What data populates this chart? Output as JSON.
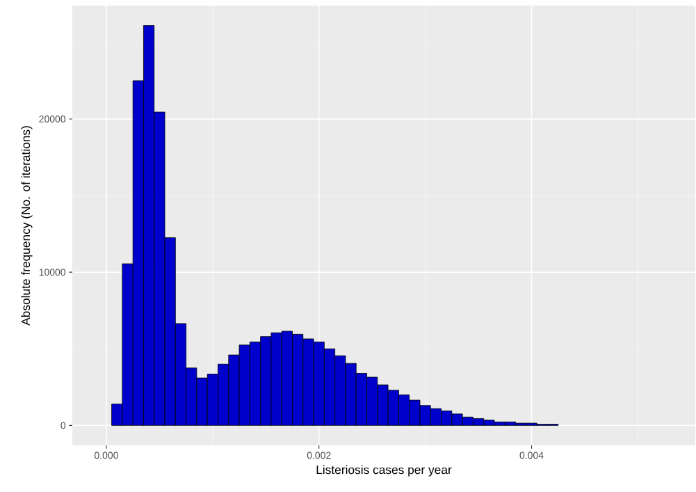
{
  "chart_data": {
    "type": "histogram",
    "xlabel": "Listeriosis cases per year",
    "ylabel": "Absolute frequency (No. of iterations)",
    "bins": [
      -5e-05,
      5e-05,
      0.00015,
      0.00025,
      0.00035,
      0.00045,
      0.00055,
      0.00065,
      0.00075,
      0.00085,
      0.00095,
      0.00105,
      0.00115,
      0.00125,
      0.00135,
      0.00145,
      0.00155,
      0.00165,
      0.00175,
      0.00185,
      0.00195,
      0.00205,
      0.00215,
      0.00225,
      0.00235,
      0.00245,
      0.00255,
      0.00265,
      0.00275,
      0.00285,
      0.00295,
      0.00305,
      0.00315,
      0.00325,
      0.00335,
      0.00345,
      0.00355,
      0.00365,
      0.00375,
      0.00385,
      0.00395,
      0.00405,
      0.00415,
      0.00425,
      0.00435,
      0.00445,
      0.00455,
      0.00465,
      0.00475,
      0.00485,
      0.00495,
      0.00505,
      0.00515,
      0.00525,
      0.00535
    ],
    "values": [
      0,
      1400,
      10550,
      22500,
      26100,
      20450,
      12250,
      6650,
      3750,
      3100,
      3350,
      4000,
      4600,
      5250,
      5450,
      5800,
      6050,
      6150,
      5950,
      5650,
      5450,
      5000,
      4550,
      4050,
      3400,
      3150,
      2650,
      2300,
      2000,
      1650,
      1300,
      1100,
      950,
      750,
      550,
      450,
      350,
      230,
      230,
      150,
      150,
      80,
      80,
      0,
      0,
      0,
      0,
      0,
      0,
      0,
      0,
      0,
      0,
      0
    ],
    "color": "#0000cc",
    "xlim": [
      -0.00032,
      0.00554
    ],
    "ylim": [
      -1300,
      27400
    ],
    "xticks": [
      {
        "value": 0,
        "label": "0.000"
      },
      {
        "value": 0.001,
        "label": null
      },
      {
        "value": 0.002,
        "label": "0.002"
      },
      {
        "value": 0.003,
        "label": null
      },
      {
        "value": 0.004,
        "label": "0.004"
      },
      {
        "value": 0.005,
        "label": null
      }
    ],
    "yticks": [
      0,
      {
        "value": 5000,
        "label": null
      },
      10000,
      {
        "value": 15000,
        "label": null
      },
      20000,
      {
        "value": 25000,
        "label": null
      }
    ],
    "grid": true
  }
}
